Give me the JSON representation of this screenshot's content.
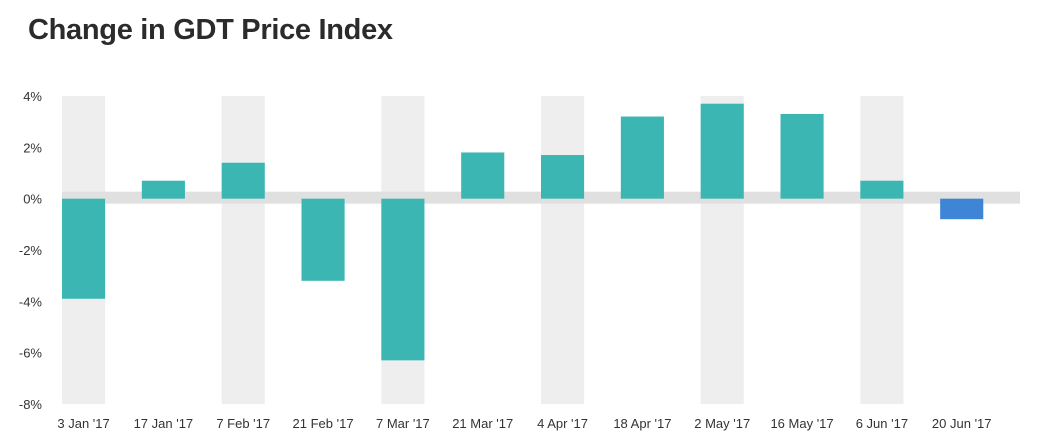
{
  "title": "Change in GDT Price Index",
  "colors": {
    "positive_bar": "#3cb6b3",
    "latest_bar": "#3f85d6",
    "column_band": "#eeeeee",
    "zero_band": "#e0e0e0"
  },
  "chart_data": {
    "type": "bar",
    "title": "Change in GDT Price Index",
    "xlabel": "",
    "ylabel": "",
    "ylim": [
      -8,
      4
    ],
    "yticks": [
      "4%",
      "2%",
      "0%",
      "-2%",
      "-4%",
      "-6%",
      "-8%"
    ],
    "yticks_values": [
      4,
      2,
      0,
      -2,
      -4,
      -6,
      -8
    ],
    "categories": [
      "3 Jan '17",
      "17 Jan '17",
      "7 Feb '17",
      "21 Feb '17",
      "7 Mar '17",
      "21 Mar '17",
      "4 Apr '17",
      "18 Apr '17",
      "2 May '17",
      "16 May '17",
      "6 Jun '17",
      "20 Jun '17"
    ],
    "values": [
      -3.9,
      0.7,
      1.4,
      -3.2,
      -6.3,
      1.8,
      1.7,
      3.2,
      3.7,
      3.3,
      0.7,
      -0.8
    ],
    "highlight_index": 11,
    "grid": false,
    "legend": "none"
  }
}
